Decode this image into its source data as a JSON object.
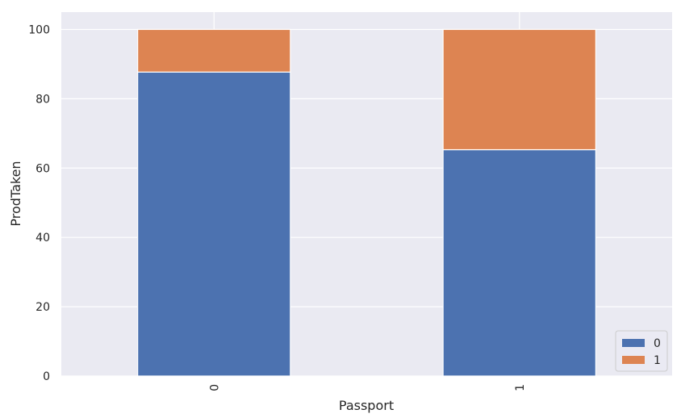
{
  "chart_data": {
    "type": "bar",
    "stacked": true,
    "categories": [
      "0",
      "1"
    ],
    "series": [
      {
        "name": "0",
        "values": [
          87.7,
          65.3
        ],
        "color": "#4C72B0"
      },
      {
        "name": "1",
        "values": [
          12.3,
          34.7
        ],
        "color": "#DD8452"
      }
    ],
    "xlabel": "Passport",
    "ylabel": "ProdTaken",
    "ylim": [
      0,
      105
    ],
    "yticks": [
      0,
      20,
      40,
      60,
      80,
      100
    ],
    "xtick_rotation": 90,
    "grid": true,
    "legend_position": "lower-right",
    "plot_background": "#EAEAF2",
    "grid_color": "#FFFFFF"
  }
}
